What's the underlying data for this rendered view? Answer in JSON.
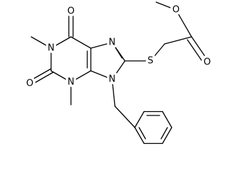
{
  "atoms": {
    "o6": "O",
    "n1": "N",
    "o2": "O",
    "n3": "N",
    "n7": "N",
    "n9": "N",
    "s": "S",
    "o_carbonyl": "O",
    "o_ester": "O"
  }
}
